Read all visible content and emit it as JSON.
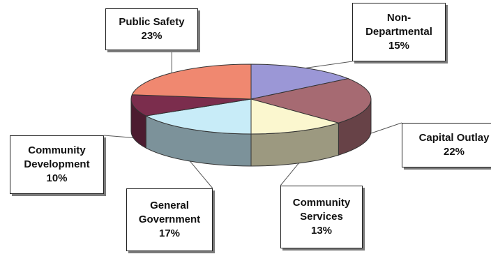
{
  "chart_data": {
    "type": "pie",
    "title": "",
    "categories": [
      "Non-Departmental",
      "Capital Outlay",
      "Community Services",
      "General Government",
      "Community Development",
      "Public Safety"
    ],
    "values": [
      15,
      22,
      13,
      17,
      10,
      23
    ],
    "value_labels": [
      "15%",
      "22%",
      "13%",
      "17%",
      "10%",
      "23%"
    ],
    "colors": [
      "#9b97d6",
      "#a66a72",
      "#fbf7cf",
      "#c8ecf8",
      "#7b2d4d",
      "#f08870"
    ],
    "style": "3d-exploded-callouts",
    "legend": "none"
  },
  "labels": {
    "public_safety": {
      "name": "Public Safety",
      "pct": "23%"
    },
    "non_departmental": {
      "name_line1": "Non-",
      "name_line2": "Departmental",
      "pct": "15%"
    },
    "capital_outlay": {
      "name": "Capital Outlay",
      "pct": "22%"
    },
    "community_development": {
      "name_line1": "Community",
      "name_line2": "Development",
      "pct": "10%"
    },
    "general_government": {
      "name_line1": "General",
      "name_line2": "Government",
      "pct": "17%"
    },
    "community_services": {
      "name_line1": "Community",
      "name_line2": "Services",
      "pct": "13%"
    }
  }
}
